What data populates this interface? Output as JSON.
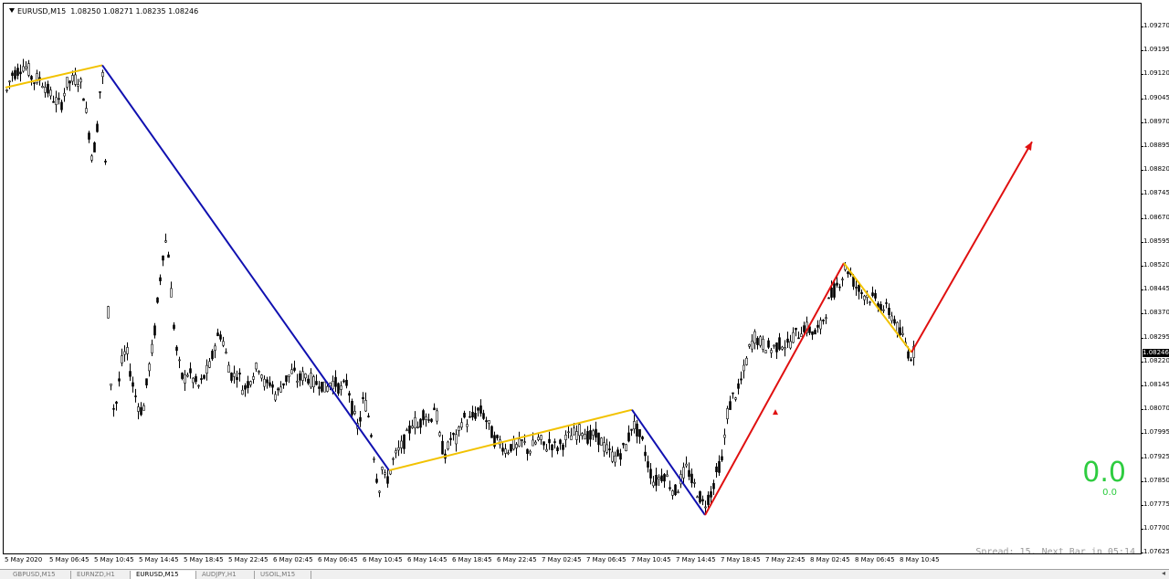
{
  "header": {
    "symbol": "EURUSD,M15",
    "ohlc": "1.08250 1.08271 1.08235 1.08246"
  },
  "indicator": {
    "value_large": "0.0",
    "value_small": "0.0",
    "color": "#2ecc40"
  },
  "status": {
    "spread_text": "Spread: 15. Next Bar in 05:14"
  },
  "current_price": "1.08246",
  "y_labels": [
    "1.09270",
    "1.09195",
    "1.09120",
    "1.09045",
    "1.08970",
    "1.08895",
    "1.08820",
    "1.08745",
    "1.08670",
    "1.08595",
    "1.08520",
    "1.08445",
    "1.08370",
    "1.08295",
    "1.08220",
    "1.08145",
    "1.08070",
    "1.07995",
    "1.07925",
    "1.07850",
    "1.07775",
    "1.07700",
    "1.07625"
  ],
  "x_labels": [
    "5 May 2020",
    "5 May 06:45",
    "5 May 10:45",
    "5 May 14:45",
    "5 May 18:45",
    "5 May 22:45",
    "6 May 02:45",
    "6 May 06:45",
    "6 May 10:45",
    "6 May 14:45",
    "6 May 18:45",
    "6 May 22:45",
    "7 May 02:45",
    "7 May 06:45",
    "7 May 10:45",
    "7 May 14:45",
    "7 May 18:45",
    "7 May 22:45",
    "8 May 02:45",
    "8 May 06:45",
    "8 May 10:45"
  ],
  "tabs": [
    {
      "label": "GBPUSD,M15",
      "active": false
    },
    {
      "label": "EURNZD,H1",
      "active": false
    },
    {
      "label": "EURUSD,M15",
      "active": true
    },
    {
      "label": "AUDJPY,H1",
      "active": false
    },
    {
      "label": "USOIL,M15",
      "active": false
    }
  ],
  "colors": {
    "yellow": "#f2c200",
    "blue": "#1010b0",
    "red": "#e01010",
    "candle": "#000000"
  },
  "price_path": [
    [
      0,
      1.0905
    ],
    [
      6,
      1.0911
    ],
    [
      12,
      1.0912
    ],
    [
      18,
      1.0914
    ],
    [
      24,
      1.0913
    ],
    [
      30,
      1.0909
    ],
    [
      36,
      1.091
    ],
    [
      42,
      1.0908
    ],
    [
      48,
      1.0905
    ],
    [
      54,
      1.0903
    ],
    [
      60,
      1.0901
    ],
    [
      66,
      1.0908
    ],
    [
      72,
      1.0909
    ],
    [
      78,
      1.091
    ],
    [
      84,
      1.0907
    ],
    [
      90,
      1.0895
    ],
    [
      95,
      1.0884
    ],
    [
      100,
      1.0895
    ],
    [
      105,
      1.0913
    ],
    [
      108,
      1.0906
    ],
    [
      110,
      1.086
    ],
    [
      113,
      1.0825
    ],
    [
      116,
      1.081
    ],
    [
      119,
      1.0805
    ],
    [
      122,
      1.081
    ],
    [
      126,
      1.082
    ],
    [
      132,
      1.0825
    ],
    [
      138,
      1.0815
    ],
    [
      144,
      1.0808
    ],
    [
      150,
      1.0805
    ],
    [
      156,
      1.0818
    ],
    [
      162,
      1.0828
    ],
    [
      168,
      1.0845
    ],
    [
      174,
      1.086
    ],
    [
      178,
      1.0855
    ],
    [
      183,
      1.0835
    ],
    [
      188,
      1.0822
    ],
    [
      194,
      1.0815
    ],
    [
      200,
      1.0818
    ],
    [
      206,
      1.0815
    ],
    [
      212,
      1.0813
    ],
    [
      218,
      1.0817
    ],
    [
      224,
      1.082
    ],
    [
      230,
      1.0828
    ],
    [
      236,
      1.083
    ],
    [
      242,
      1.0822
    ],
    [
      248,
      1.0816
    ],
    [
      254,
      1.0818
    ],
    [
      260,
      1.0812
    ],
    [
      266,
      1.0815
    ],
    [
      272,
      1.0818
    ],
    [
      278,
      1.082
    ],
    [
      284,
      1.0813
    ],
    [
      290,
      1.0815
    ],
    [
      296,
      1.081
    ],
    [
      302,
      1.0814
    ],
    [
      308,
      1.0816
    ],
    [
      314,
      1.0818
    ],
    [
      320,
      1.0815
    ],
    [
      326,
      1.0817
    ],
    [
      332,
      1.0816
    ],
    [
      338,
      1.0814
    ],
    [
      344,
      1.0815
    ],
    [
      350,
      1.0812
    ],
    [
      356,
      1.0815
    ],
    [
      362,
      1.0814
    ],
    [
      368,
      1.0812
    ],
    [
      374,
      1.0815
    ],
    [
      380,
      1.0805
    ],
    [
      386,
      1.08
    ],
    [
      392,
      1.081
    ],
    [
      398,
      1.0803
    ],
    [
      404,
      1.079
    ],
    [
      408,
      1.078
    ],
    [
      412,
      1.0788
    ],
    [
      416,
      1.0783
    ],
    [
      420,
      1.0786
    ],
    [
      424,
      1.079
    ],
    [
      428,
      1.0792
    ],
    [
      434,
      1.0795
    ],
    [
      440,
      1.0798
    ],
    [
      446,
      1.0803
    ],
    [
      452,
      1.08
    ],
    [
      458,
      1.0806
    ],
    [
      464,
      1.0802
    ],
    [
      470,
      1.0808
    ],
    [
      476,
      1.0795
    ],
    [
      482,
      1.0792
    ],
    [
      488,
      1.0798
    ],
    [
      494,
      1.0796
    ],
    [
      500,
      1.0804
    ],
    [
      506,
      1.0802
    ],
    [
      512,
      1.0804
    ],
    [
      518,
      1.0806
    ],
    [
      524,
      1.0804
    ],
    [
      530,
      1.08
    ],
    [
      536,
      1.0796
    ],
    [
      542,
      1.0796
    ],
    [
      548,
      1.0793
    ],
    [
      554,
      1.0795
    ],
    [
      560,
      1.0794
    ],
    [
      566,
      1.0796
    ],
    [
      572,
      1.0793
    ],
    [
      578,
      1.0795
    ],
    [
      584,
      1.0797
    ],
    [
      590,
      1.0794
    ],
    [
      596,
      1.0796
    ],
    [
      602,
      1.0794
    ],
    [
      608,
      1.0795
    ],
    [
      614,
      1.0797
    ],
    [
      620,
      1.0798
    ],
    [
      626,
      1.0799
    ],
    [
      632,
      1.08
    ],
    [
      638,
      1.0797
    ],
    [
      644,
      1.0798
    ],
    [
      650,
      1.0797
    ],
    [
      656,
      1.0794
    ],
    [
      662,
      1.0792
    ],
    [
      668,
      1.0791
    ],
    [
      674,
      1.0793
    ],
    [
      680,
      1.0795
    ],
    [
      686,
      1.0802
    ],
    [
      692,
      1.0799
    ],
    [
      698,
      1.0795
    ],
    [
      704,
      1.0788
    ],
    [
      710,
      1.0783
    ],
    [
      716,
      1.0785
    ],
    [
      722,
      1.0786
    ],
    [
      728,
      1.0782
    ],
    [
      734,
      1.078
    ],
    [
      740,
      1.0785
    ],
    [
      746,
      1.0788
    ],
    [
      752,
      1.0783
    ],
    [
      758,
      1.078
    ],
    [
      764,
      1.0776
    ],
    [
      768,
      1.0778
    ],
    [
      772,
      1.078
    ],
    [
      776,
      1.0784
    ],
    [
      780,
      1.0788
    ],
    [
      784,
      1.079
    ],
    [
      790,
      1.0805
    ],
    [
      796,
      1.081
    ],
    [
      802,
      1.0812
    ],
    [
      808,
      1.0818
    ],
    [
      814,
      1.0825
    ],
    [
      820,
      1.0829
    ],
    [
      826,
      1.0827
    ],
    [
      832,
      1.0826
    ],
    [
      838,
      1.0825
    ],
    [
      844,
      1.0826
    ],
    [
      850,
      1.0827
    ],
    [
      856,
      1.0826
    ],
    [
      862,
      1.0829
    ],
    [
      868,
      1.083
    ],
    [
      874,
      1.0832
    ],
    [
      880,
      1.0831
    ],
    [
      886,
      1.083
    ],
    [
      892,
      1.0832
    ],
    [
      898,
      1.0837
    ],
    [
      904,
      1.0842
    ],
    [
      910,
      1.0845
    ],
    [
      916,
      1.0848
    ],
    [
      920,
      1.0851
    ],
    [
      924,
      1.0849
    ],
    [
      930,
      1.0845
    ],
    [
      936,
      1.0843
    ],
    [
      942,
      1.0842
    ],
    [
      948,
      1.0841
    ],
    [
      954,
      1.084
    ],
    [
      960,
      1.0838
    ],
    [
      966,
      1.0837
    ],
    [
      972,
      1.0835
    ],
    [
      978,
      1.083
    ],
    [
      984,
      1.0828
    ],
    [
      988,
      1.0824
    ],
    [
      992,
      1.0823
    ],
    [
      996,
      1.0825
    ]
  ],
  "zigzag": [
    {
      "color": "yellow",
      "points": [
        [
          0,
          1.0907
        ],
        [
          106,
          1.0914
        ]
      ]
    },
    {
      "color": "blue",
      "points": [
        [
          106,
          1.0914
        ],
        [
          420,
          1.0787
        ]
      ]
    },
    {
      "color": "yellow",
      "points": [
        [
          420,
          1.0787
        ],
        [
          686,
          1.0806
        ]
      ]
    },
    {
      "color": "blue",
      "points": [
        [
          686,
          1.0806
        ],
        [
          766,
          1.0773
        ]
      ]
    },
    {
      "color": "red",
      "points": [
        [
          766,
          1.0773
        ],
        [
          918,
          1.0852
        ]
      ]
    },
    {
      "color": "yellow",
      "points": [
        [
          918,
          1.0852
        ],
        [
          992,
          1.0824
        ]
      ]
    },
    {
      "color": "red",
      "points": [
        [
          992,
          1.0824
        ],
        [
          1124,
          1.089
        ]
      ]
    }
  ]
}
